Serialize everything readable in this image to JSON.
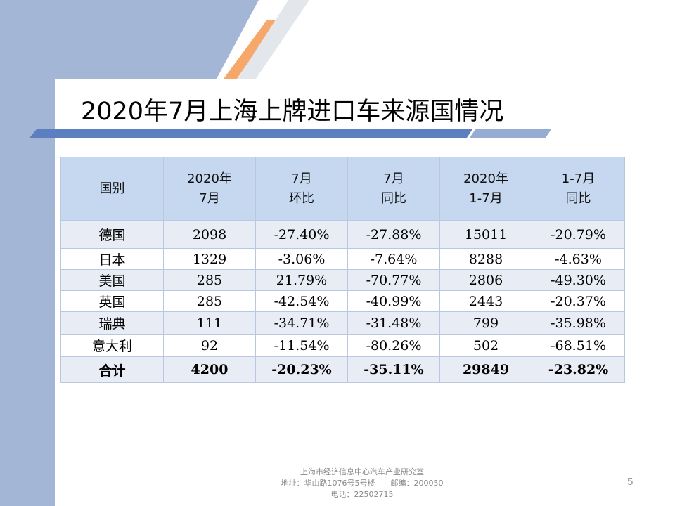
{
  "slide": {
    "title": "2020年7月上海上牌进口车来源国情况",
    "page_number": "5"
  },
  "table": {
    "headers": [
      [
        "国别"
      ],
      [
        "2020年",
        "7月"
      ],
      [
        "7月",
        "环比"
      ],
      [
        "7月",
        "同比"
      ],
      [
        "2020年",
        "1-7月"
      ],
      [
        "1-7月",
        "同比"
      ]
    ],
    "rows": [
      [
        "德国",
        "2098",
        "-27.40%",
        "-27.88%",
        "15011",
        "-20.79%"
      ],
      [
        "日本",
        "1329",
        "-3.06%",
        "-7.64%",
        "8288",
        "-4.63%"
      ],
      [
        "美国",
        "285",
        "21.79%",
        "-70.77%",
        "2806",
        "-49.30%"
      ],
      [
        "英国",
        "285",
        "-42.54%",
        "-40.99%",
        "2443",
        "-20.37%"
      ],
      [
        "瑞典",
        "111",
        "-34.71%",
        "-31.48%",
        "799",
        "-35.98%"
      ],
      [
        "意大利",
        "92",
        "-11.54%",
        "-80.26%",
        "502",
        "-68.51%"
      ]
    ],
    "total": [
      "合计",
      "4200",
      "-20.23%",
      "-35.11%",
      "29849",
      "-23.82%"
    ]
  },
  "footer": {
    "line1": "上海市经济信息中心汽车产业研究室",
    "line2": "地址：华山路1076号5号楼　　邮编：200050",
    "line3": "电话：22502715"
  },
  "colors": {
    "band": "#a3b6d6",
    "header_fill": "#c6d8f0",
    "row_alt": "#e8edf5",
    "accent_orange": "#f6a86a"
  }
}
